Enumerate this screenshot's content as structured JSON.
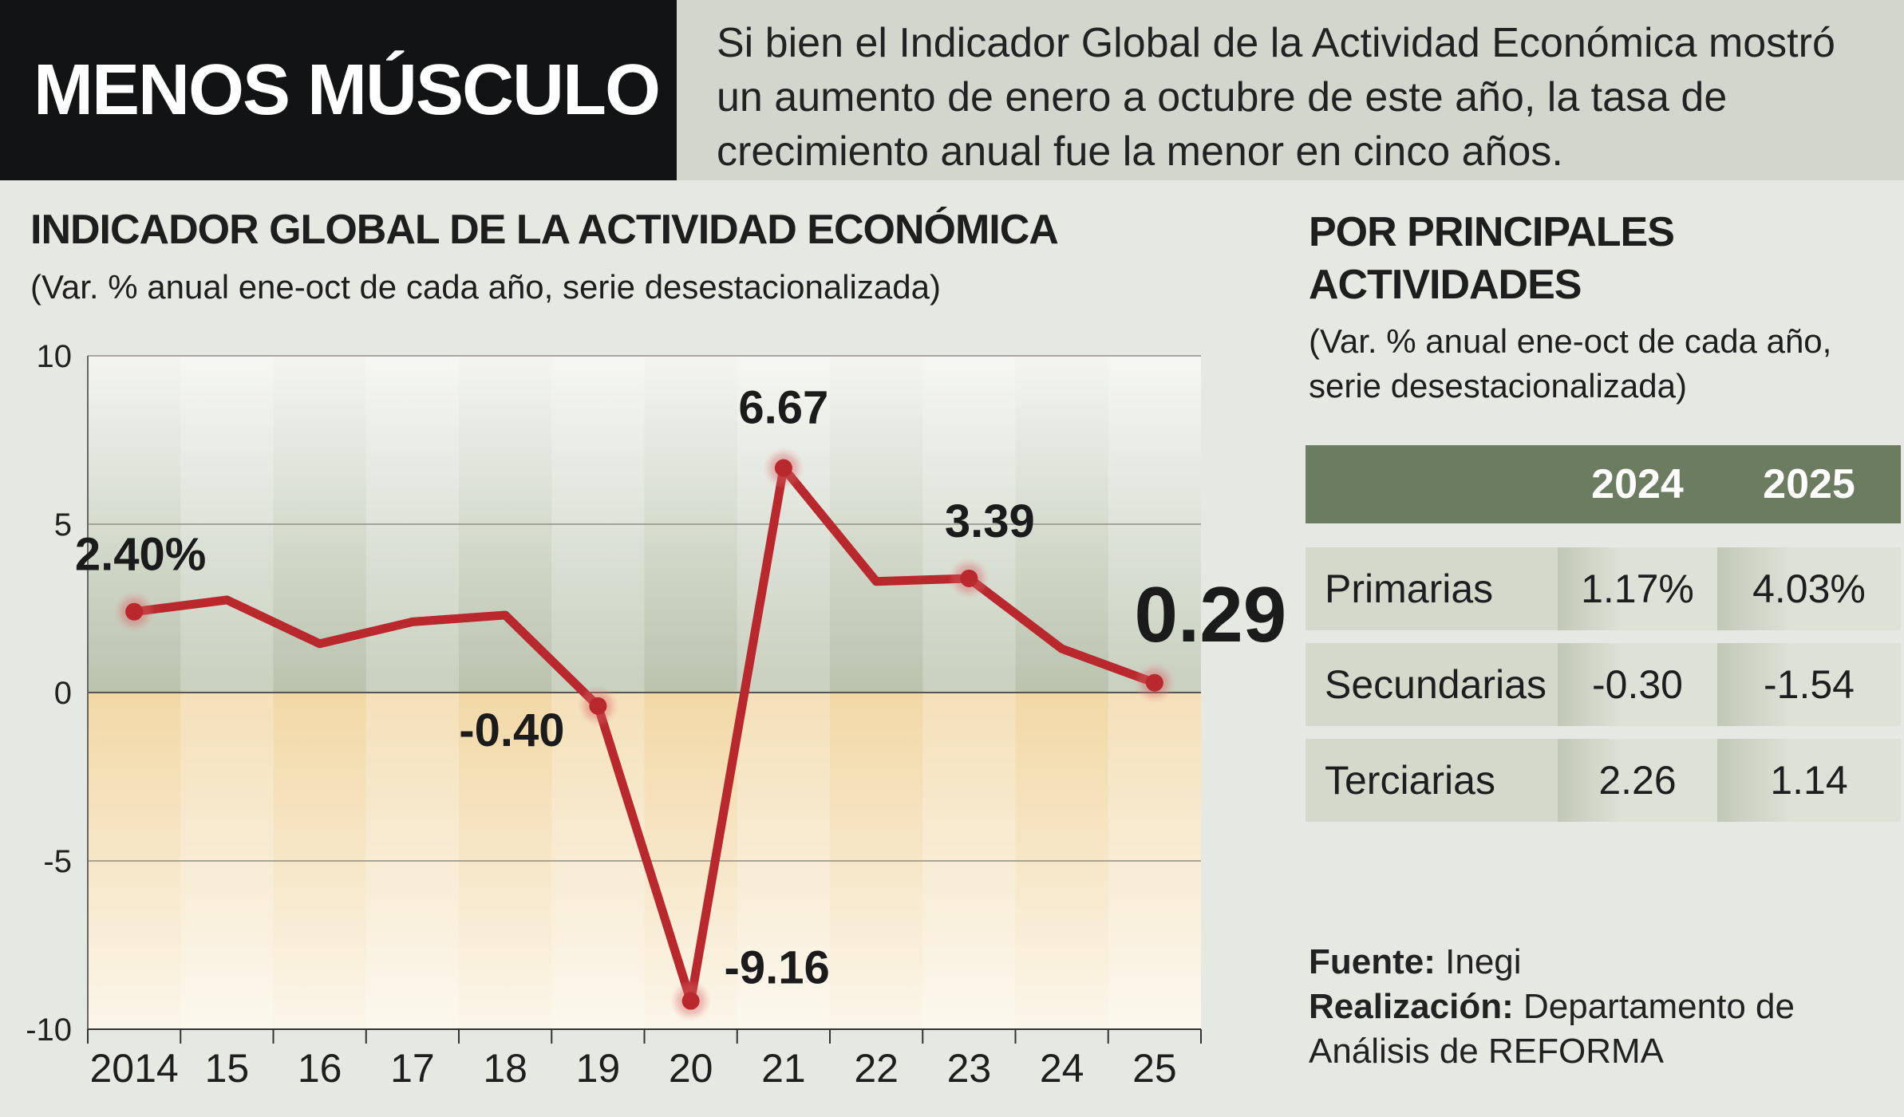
{
  "header": {
    "title": "MENOS MÚSCULO",
    "description": "Si bien el Indicador Global de la Actividad Económica mostró un aumento de enero a octubre de este año, la tasa de crecimiento anual fue la menor en cinco años."
  },
  "chart_data": {
    "type": "line",
    "title": "INDICADOR GLOBAL DE LA ACTIVIDAD ECONÓMICA",
    "subtitle": "(Var. % anual ene-oct de cada año, serie desestacionalizada)",
    "categories": [
      "2014",
      "15",
      "16",
      "17",
      "18",
      "19",
      "20",
      "21",
      "22",
      "23",
      "24",
      "25"
    ],
    "series": [
      {
        "values": [
          2.4,
          2.75,
          1.45,
          2.1,
          2.3,
          -0.4,
          -9.16,
          6.67,
          3.3,
          3.39,
          1.3,
          0.29
        ]
      }
    ],
    "ylim": [
      -10,
      10
    ],
    "yticks": [
      "10",
      "5",
      "0",
      "-5",
      "-10"
    ],
    "grid": true,
    "line_color": "#b8282d",
    "highlighted_points": [
      {
        "category": "2014",
        "label": "2.40%"
      },
      {
        "category": "19",
        "label": "-0.40"
      },
      {
        "category": "20",
        "label": "-9.16"
      },
      {
        "category": "21",
        "label": "6.67"
      },
      {
        "category": "23",
        "label": "3.39"
      },
      {
        "category": "25",
        "label": "0.29"
      }
    ]
  },
  "sidebar": {
    "title": "POR PRINCIPALES ACTIVIDADES",
    "subtitle": "(Var. % anual ene-oct de cada año, serie desestacionalizada)",
    "table": {
      "columns": [
        "2024",
        "2025"
      ],
      "rows": [
        {
          "label": "Primarias",
          "v2024": "1.17%",
          "v2025": "4.03%"
        },
        {
          "label": "Secundarias",
          "v2024": "-0.30",
          "v2025": "-1.54"
        },
        {
          "label": "Terciarias",
          "v2024": "2.26",
          "v2025": "1.14"
        }
      ]
    }
  },
  "credits": {
    "source_label": "Fuente:",
    "source": "Inegi",
    "made_label": "Realización:",
    "made_by": "Departamento de Análisis de REFORMA"
  }
}
